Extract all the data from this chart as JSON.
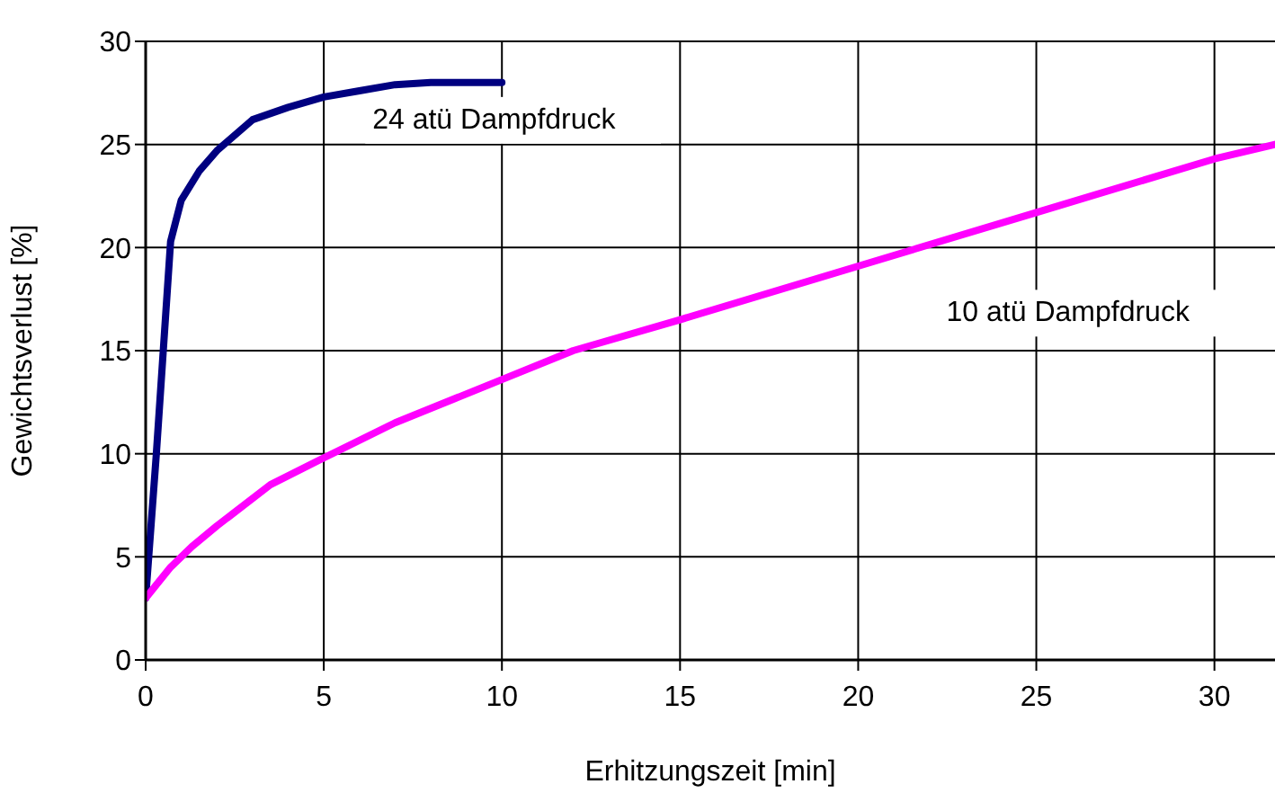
{
  "chart_data": {
    "type": "line",
    "xlabel": "Erhitzungszeit [min]",
    "ylabel": "Gewichtsverlust [%]",
    "xlim": [
      0,
      31.7
    ],
    "xticks": [
      0,
      5,
      10,
      15,
      20,
      25,
      30
    ],
    "ylim": [
      0,
      30
    ],
    "yticks": [
      0,
      5,
      10,
      15,
      20,
      25,
      30
    ],
    "grid": true,
    "marker": "none",
    "line_style": "solid",
    "series": [
      {
        "name": "24 atü Dampfdruck",
        "color": "#000080",
        "x": [
          0,
          0.3,
          0.7,
          1,
          1.5,
          2,
          3,
          4,
          5,
          6,
          7,
          8,
          10
        ],
        "values": [
          3,
          10,
          20.3,
          22.3,
          23.7,
          24.7,
          26.2,
          26.8,
          27.3,
          27.6,
          27.9,
          28,
          28
        ]
      },
      {
        "name": "10 atü Dampfdruck",
        "color": "#ff00ff",
        "x": [
          0,
          0.7,
          1.3,
          2,
          3.5,
          5,
          7,
          10,
          12,
          15,
          20,
          25,
          30,
          31.7
        ],
        "values": [
          3,
          4.5,
          5.5,
          6.5,
          8.5,
          9.8,
          11.5,
          13.6,
          15,
          16.5,
          19.1,
          21.7,
          24.3,
          25
        ]
      }
    ]
  }
}
